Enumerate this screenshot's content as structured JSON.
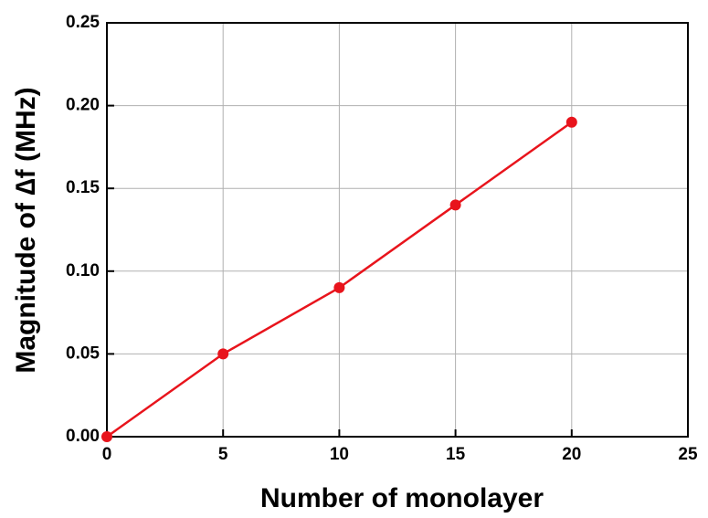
{
  "chart_data": {
    "type": "line",
    "x_label": "Number of monolayer",
    "y_label": "Magnitude of ∆f (MHz)",
    "x": [
      0,
      5,
      10,
      15,
      20
    ],
    "series": [
      {
        "color": "#e8141c",
        "values": [
          0,
          0.05,
          0.09,
          0.14,
          0.19
        ]
      }
    ],
    "xlim": [
      0,
      25
    ],
    "xticks": [
      0,
      5,
      10,
      15,
      20,
      25
    ],
    "ylim": [
      0,
      0.25
    ],
    "yticks": [
      {
        "value": 0,
        "label": "0.00"
      },
      {
        "value": 0.05,
        "label": "0.05"
      },
      {
        "value": 0.1,
        "label": "0.10"
      },
      {
        "value": 0.15,
        "label": "0.15"
      },
      {
        "value": 0.2,
        "label": "0.20"
      },
      {
        "value": 0.25,
        "label": "0.25"
      }
    ],
    "grid": true
  }
}
